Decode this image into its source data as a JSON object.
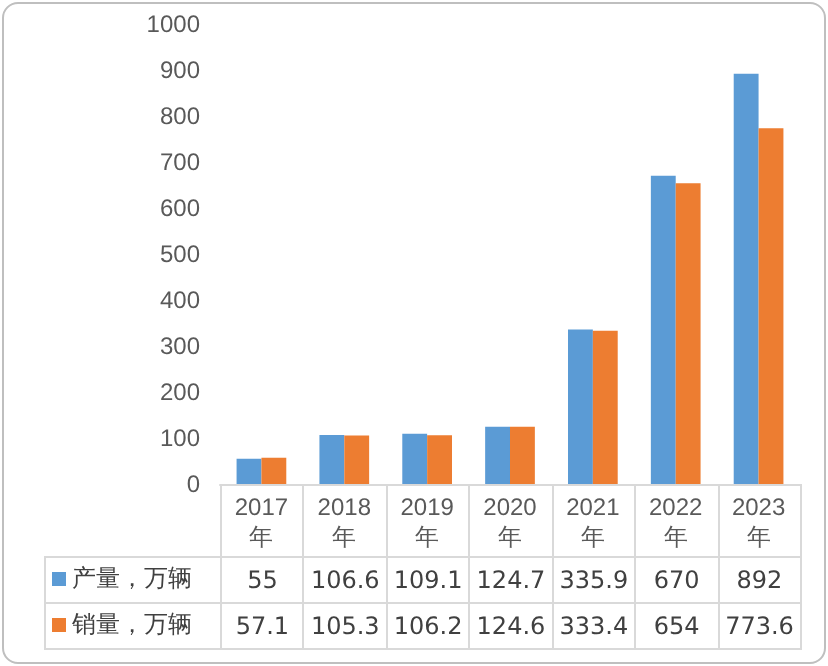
{
  "chart_data": {
    "type": "bar",
    "categories": [
      "2017年",
      "2018年",
      "2019年",
      "2020年",
      "2021年",
      "2022年",
      "2023年"
    ],
    "series": [
      {
        "name": "产量，万辆",
        "color": "#5b9bd5",
        "values": [
          55,
          106.6,
          109.1,
          124.7,
          335.9,
          670,
          892
        ]
      },
      {
        "name": "销量，万辆",
        "color": "#ed7d31",
        "values": [
          57.1,
          105.3,
          106.2,
          124.6,
          333.4,
          654,
          773.6
        ]
      }
    ],
    "ylim": [
      0,
      1000
    ],
    "yticks": [
      0,
      100,
      200,
      300,
      400,
      500,
      600,
      700,
      800,
      900,
      1000
    ],
    "grid": false,
    "data_labels": true,
    "legend": "bottom left"
  }
}
